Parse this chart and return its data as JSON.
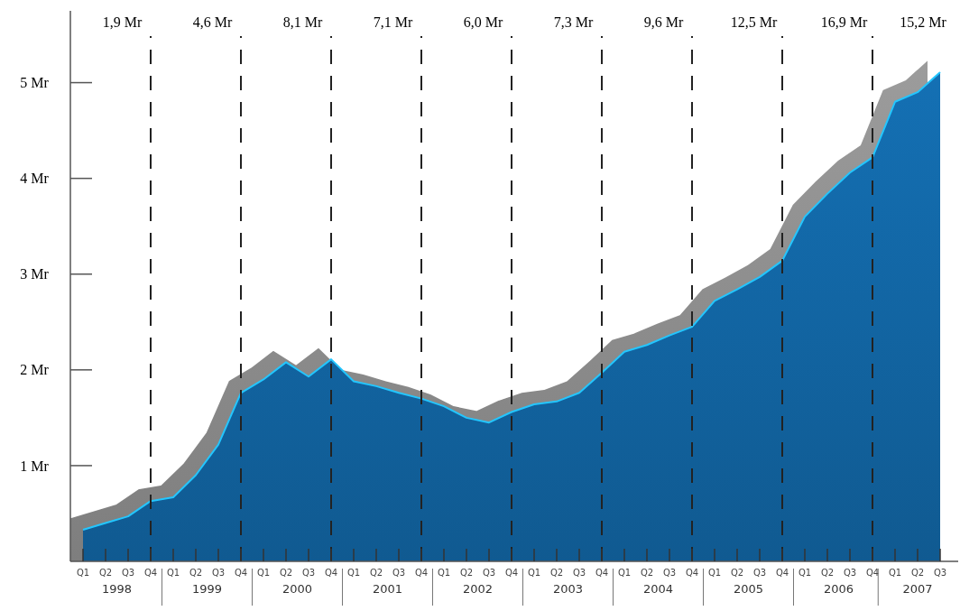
{
  "chart_data": {
    "type": "area",
    "x": [
      1998,
      1998.25,
      1998.5,
      1998.75,
      1999,
      1999.25,
      1999.5,
      1999.75,
      2000,
      2000.25,
      2000.5,
      2000.75,
      2001,
      2001.25,
      2001.5,
      2001.75,
      2002,
      2002.25,
      2002.5,
      2002.75,
      2003,
      2003.25,
      2003.5,
      2003.75,
      2004,
      2004.25,
      2004.5,
      2004.75,
      2005,
      2005.25,
      2005.5,
      2005.75,
      2006,
      2006.25,
      2006.5,
      2006.75,
      2007,
      2007.25,
      2007.5
    ],
    "series": [
      {
        "color": "#9c9c9c",
        "x": [
          1997.86,
          1998.11,
          1998.36,
          1998.61,
          1998.86,
          1999.11,
          1999.36,
          1999.61,
          1999.86,
          2000.11,
          2000.36,
          2000.61,
          2000.86,
          2001.11,
          2001.36,
          2001.61,
          2001.86,
          2002.11,
          2002.36,
          2002.61,
          2002.86,
          2003.11,
          2003.36,
          2003.61,
          2003.86,
          2004.11,
          2004.36,
          2004.61,
          2004.86,
          2005.11,
          2005.36,
          2005.61,
          2005.86,
          2006.11,
          2006.36,
          2006.61,
          2006.86,
          2007.11,
          2007.36
        ],
        "values": [
          0.46,
          0.53,
          0.6,
          0.76,
          0.8,
          1.03,
          1.35,
          1.89,
          2.03,
          2.21,
          2.06,
          2.24,
          2.01,
          1.96,
          1.89,
          1.83,
          1.75,
          1.63,
          1.58,
          1.69,
          1.77,
          1.8,
          1.89,
          2.1,
          2.32,
          2.39,
          2.49,
          2.58,
          2.85,
          2.97,
          3.1,
          3.27,
          3.73,
          3.97,
          4.19,
          4.35,
          4.93,
          5.03,
          5.24
        ]
      },
      {
        "color": "#1470b4",
        "values": [
          0.33,
          0.4,
          0.47,
          0.63,
          0.67,
          0.9,
          1.22,
          1.76,
          1.9,
          2.08,
          1.93,
          2.11,
          1.88,
          1.83,
          1.76,
          1.7,
          1.62,
          1.5,
          1.45,
          1.56,
          1.64,
          1.67,
          1.76,
          1.97,
          2.19,
          2.26,
          2.36,
          2.45,
          2.72,
          2.84,
          2.97,
          3.14,
          3.6,
          3.84,
          4.06,
          4.22,
          4.8,
          4.9,
          5.11
        ]
      }
    ],
    "xlim": [
      1997.86,
      2007.7
    ],
    "xticks": [
      {
        "value": 1998.375,
        "label": "1998"
      },
      {
        "value": 1999.375,
        "label": "1999"
      },
      {
        "value": 2000.375,
        "label": "2000"
      },
      {
        "value": 2001.375,
        "label": "2001"
      },
      {
        "value": 2002.375,
        "label": "2002"
      },
      {
        "value": 2003.375,
        "label": "2003"
      },
      {
        "value": 2004.375,
        "label": "2004"
      },
      {
        "value": 2005.375,
        "label": "2005"
      },
      {
        "value": 2006.375,
        "label": "2006"
      },
      {
        "value": 2007.25,
        "label": "2007"
      }
    ],
    "ylim": [
      0,
      5.75
    ],
    "yticks": [
      {
        "value": 1,
        "label": "1 Mr"
      },
      {
        "value": 2,
        "label": "2 Mr"
      },
      {
        "value": 3,
        "label": "3 Mr"
      },
      {
        "value": 4,
        "label": "4 Mr"
      },
      {
        "value": 5,
        "label": "5 Mr"
      }
    ],
    "ref_lines": [
      {
        "axis": "x",
        "value": 1998.75,
        "line_style": "dashed",
        "color": "#222222"
      },
      {
        "axis": "x",
        "value": 1999.75,
        "line_style": "dashed",
        "color": "#222222"
      },
      {
        "axis": "x",
        "value": 2000.75,
        "line_style": "dashed",
        "color": "#222222"
      },
      {
        "axis": "x",
        "value": 2001.75,
        "line_style": "dashed",
        "color": "#222222"
      },
      {
        "axis": "x",
        "value": 2002.75,
        "line_style": "dashed",
        "color": "#222222"
      },
      {
        "axis": "x",
        "value": 2003.75,
        "line_style": "dashed",
        "color": "#222222"
      },
      {
        "axis": "x",
        "value": 2004.75,
        "line_style": "dashed",
        "color": "#222222"
      },
      {
        "axis": "x",
        "value": 2005.75,
        "line_style": "dashed",
        "color": "#222222"
      },
      {
        "axis": "x",
        "value": 2006.75,
        "line_style": "dashed",
        "color": "#222222"
      }
    ],
    "annotations": [
      "1,9 Mr",
      "4,6 Mr",
      "8,1 Mr",
      "7,1 Mr",
      "6,0 Mr",
      "7,3 Mr",
      "9,6 Mr",
      "12,5 Mr",
      "16,9 Mr",
      "15,2 Mr",
      "Q1",
      "Q2",
      "Q3",
      "Q4",
      "Q1",
      "Q2",
      "Q3",
      "Q4",
      "Q1",
      "Q2",
      "Q3",
      "Q4",
      "Q1",
      "Q2",
      "Q3",
      "Q4",
      "Q1",
      "Q2",
      "Q3",
      "Q4",
      "Q1",
      "Q2",
      "Q3",
      "Q4",
      "Q1",
      "Q2",
      "Q3",
      "Q4",
      "Q1",
      "Q2",
      "Q3",
      "Q4",
      "Q1",
      "Q2",
      "Q3",
      "Q4",
      "Q1",
      "Q2",
      "Q3"
    ]
  }
}
